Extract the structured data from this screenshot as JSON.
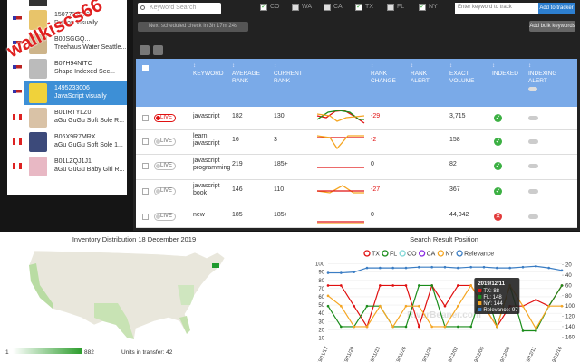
{
  "sidebar": {
    "items": [
      {
        "flag": "us",
        "id": "1507727070",
        "title": "Python Visually"
      },
      {
        "flag": "us",
        "id": "B00SGGQ...",
        "title": "Treehaus Water Seattle..."
      },
      {
        "flag": "us",
        "id": "B07H94NITC",
        "title": "Shape Indexed Sec..."
      },
      {
        "flag": "us",
        "id": "1495233006",
        "title": "JavaScript visually",
        "selected": true
      },
      {
        "flag": "ca",
        "id": "B01IRTYLZ0",
        "title": "aGu GuGu Soft Sole R..."
      },
      {
        "flag": "ca",
        "id": "B06X9R7MRX",
        "title": "aGu GuGu Soft Sole 1..."
      },
      {
        "flag": "ca",
        "id": "B01LZQJ1J1",
        "title": "aGu GuGu Baby Girl R..."
      }
    ]
  },
  "watermark": "wallkiscs66",
  "toolbar": {
    "search_placeholder": "Keyword Search",
    "regions": [
      {
        "name": "CO",
        "checked": true
      },
      {
        "name": "WA",
        "checked": false
      },
      {
        "name": "CA",
        "checked": false
      },
      {
        "name": "TX",
        "checked": true
      },
      {
        "name": "FL",
        "checked": false
      },
      {
        "name": "NY",
        "checked": true
      }
    ],
    "track_placeholder": "Enter keyword to track",
    "track_button": "Add to tracker",
    "schedule": "Next scheduled check in 3h 17m 24s",
    "bulk_button": "Add bulk keywords"
  },
  "table": {
    "headers": [
      {
        "key": "keyword",
        "label": "KEYWORD"
      },
      {
        "key": "average_rank",
        "label": "AVERAGE RANK"
      },
      {
        "key": "current_rank",
        "label": "CURRENT RANK"
      },
      {
        "key": "rank_change",
        "label": "RANK CHANGE"
      },
      {
        "key": "rank_alert",
        "label": "RANK ALERT"
      },
      {
        "key": "exact_volume",
        "label": "EXACT VOLUME"
      },
      {
        "key": "indexed",
        "label": "INDEXED"
      },
      {
        "key": "indexing_alert",
        "label": "INDEXING ALERT"
      }
    ],
    "rows": [
      {
        "live": "LIVE",
        "live_active": true,
        "keyword": "javascript",
        "average_rank": 182,
        "current_rank": 130,
        "rank_change": -29,
        "exact_volume": "3,715",
        "indexed": true
      },
      {
        "live": "LIVE",
        "live_active": false,
        "keyword": "learn javascript",
        "average_rank": 16,
        "current_rank": 3,
        "rank_change": -2,
        "exact_volume": 158,
        "indexed": true
      },
      {
        "live": "LIVE",
        "live_active": false,
        "keyword": "javascript programming",
        "average_rank": 219,
        "current_rank": "185+",
        "rank_change": 0,
        "exact_volume": 82,
        "indexed": true
      },
      {
        "live": "LIVE",
        "live_active": false,
        "keyword": "javascript book",
        "average_rank": 146,
        "current_rank": 110,
        "rank_change": -27,
        "exact_volume": 367,
        "indexed": true
      },
      {
        "live": "LIVE",
        "live_active": false,
        "keyword": "new",
        "average_rank": 185,
        "current_rank": "185+",
        "rank_change": 0,
        "exact_volume": "44,042",
        "indexed": false
      }
    ]
  },
  "map": {
    "title": "Inventory Distribution 18 December 2019",
    "legend_min": 1,
    "legend_max": 882,
    "units": "Units in transfer: 42"
  },
  "chart_data": {
    "type": "line",
    "title": "Search Result Position",
    "watermark": "RiverBeaner.com",
    "categories": [
      "2019/11/17",
      null,
      "2019/11/20",
      null,
      "2019/11/23",
      null,
      "2019/11/26",
      null,
      "2019/11/29",
      null,
      "2019/12/02",
      null,
      "2019/12/05",
      null,
      "2019/12/08",
      null,
      "2019/12/11",
      null,
      "2019/12/16"
    ],
    "ylim": [
      5,
      105
    ],
    "yticks": [
      10,
      20,
      30,
      40,
      50,
      60,
      70,
      80,
      90,
      100
    ],
    "y2lim": [
      170,
      10
    ],
    "y2ticks": [
      20,
      40,
      60,
      80,
      100,
      120,
      140,
      160
    ],
    "grid": true,
    "series": [
      {
        "name": "TX",
        "color": "#e01010",
        "axis": "y2",
        "values": [
          60,
          60,
          100,
          140,
          60,
          60,
          60,
          140,
          60,
          100,
          60,
          60,
          100,
          140,
          100,
          100,
          88,
          100,
          60
        ]
      },
      {
        "name": "FL",
        "color": "#1a8c1a",
        "axis": "y2",
        "values": [
          100,
          140,
          140,
          100,
          100,
          140,
          140,
          60,
          60,
          140,
          140,
          140,
          60,
          140,
          60,
          148,
          148,
          100,
          60
        ]
      },
      {
        "name": "CO",
        "color": "#7fd6d6",
        "axis": "y2",
        "values": [
          null,
          null,
          null,
          null,
          null,
          null,
          null,
          null,
          null,
          null,
          null,
          null,
          null,
          null,
          null,
          null,
          null,
          null,
          null
        ]
      },
      {
        "name": "CA",
        "color": "#8a2be2",
        "axis": "y2",
        "values": [
          null,
          null,
          null,
          null,
          null,
          null,
          null,
          null,
          null,
          null,
          null,
          null,
          null,
          null,
          null,
          null,
          null,
          null,
          null
        ]
      },
      {
        "name": "NY",
        "color": "#f5a623",
        "axis": "y2",
        "values": [
          80,
          100,
          140,
          140,
          100,
          140,
          100,
          100,
          140,
          140,
          100,
          60,
          100,
          140,
          60,
          100,
          144,
          100,
          100
        ]
      },
      {
        "name": "Relevance",
        "color": "#3a7dc4",
        "axis": "y",
        "values": [
          89,
          89,
          90,
          95,
          95,
          95,
          95,
          96,
          96,
          96,
          95,
          96,
          96,
          95,
          95,
          96,
          97,
          95,
          92
        ]
      }
    ],
    "tooltip": {
      "index": 16,
      "title": "2019/12/11",
      "lines": [
        "TX: 88",
        "FL: 148",
        "NY: 144",
        "Relevance: 97"
      ]
    }
  }
}
